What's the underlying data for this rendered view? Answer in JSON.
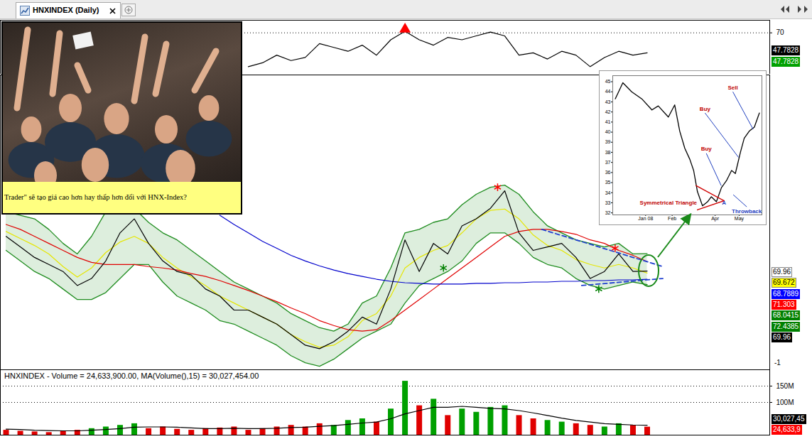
{
  "header": {
    "tab": "HNXINDEX (Daily)"
  },
  "photo": {
    "caption": "Trader\" sẽ tạo giá cao hơn hay thấp hơn đối với HNX-Index?"
  },
  "chart_data": [
    {
      "type": "line",
      "x": [
        0,
        1,
        2,
        3,
        4,
        5,
        6,
        7,
        8,
        9,
        10,
        11,
        12,
        13,
        14,
        15,
        16,
        17,
        18,
        19,
        20,
        21,
        22,
        23,
        24,
        25,
        26,
        27,
        28,
        29,
        30,
        31,
        32,
        33,
        34,
        35,
        36,
        37,
        38,
        39,
        40,
        41,
        42,
        43,
        44,
        45
      ],
      "series": [
        {
          "type": "line",
          "color": "#000000",
          "values": [
            null,
            null,
            null,
            null,
            null,
            null,
            null,
            null,
            null,
            null,
            null,
            null,
            null,
            null,
            null,
            null,
            null,
            32.4,
            36.7,
            45.2,
            39.2,
            42.6,
            58.0,
            53.8,
            49.5,
            56.3,
            45.2,
            62.3,
            71.7,
            62.3,
            56.3,
            64.9,
            62.3,
            66.6,
            70.9,
            66.6,
            45.2,
            47.8,
            40.9,
            49.5,
            45.2,
            32.4,
            42.6,
            49.5,
            45.2,
            47.7828
          ]
        }
      ],
      "xlim": [
        -0.4,
        53.6
      ],
      "ylim": [
        24,
        84
      ],
      "yticks": [
        70
      ],
      "grid": true,
      "tick_labels": "y",
      "markers": [
        {
          "x": 28,
          "y": 74,
          "color": "#ff0000",
          "marker": "triangle"
        }
      ],
      "right_labels": [
        {
          "label": "47.7828",
          "color": "#000000"
        },
        {
          "label": "47.7828",
          "color": "#00a000"
        }
      ]
    },
    {
      "type": "line",
      "x": [
        0,
        1,
        2,
        3,
        4,
        5,
        6,
        7,
        8,
        9,
        10,
        11,
        12,
        13,
        14,
        15,
        16,
        17,
        18,
        19,
        20,
        21,
        22,
        23,
        24,
        25,
        26,
        27,
        28,
        29,
        30,
        31,
        32,
        33,
        34,
        35,
        36,
        37,
        38,
        39,
        40,
        41,
        42,
        43,
        44,
        45
      ],
      "series": [
        {
          "type": "band",
          "color": "#1e8c1e",
          "upper": [
            78.4,
            77.9,
            77.4,
            75.9,
            73.9,
            72.4,
            74.9,
            78.4,
            79.4,
            78.9,
            76.9,
            75.4,
            74.4,
            72.9,
            71.4,
            69.9,
            68.4,
            67.4,
            66.4,
            65.4,
            63.9,
            62.9,
            61.9,
            61.4,
            62.4,
            65.4,
            66.4,
            70.4,
            75.4,
            75.9,
            76.9,
            77.4,
            79.4,
            80.9,
            81.9,
            82.2,
            80.9,
            78.4,
            76.4,
            75.4,
            74.4,
            73.9,
            73.4,
            73.9,
            72.4,
            72.4385
          ],
          "lower": [
            72.9,
            71.4,
            69.9,
            68.9,
            67.4,
            65.9,
            65.9,
            66.9,
            68.9,
            70.9,
            70.9,
            68.4,
            66.4,
            65.4,
            64.4,
            62.9,
            62.4,
            61.4,
            60.4,
            59.4,
            57.9,
            56.9,
            56.4,
            57.4,
            58.9,
            60.4,
            61.4,
            62.4,
            65.4,
            67.9,
            68.9,
            69.9,
            71.4,
            73.9,
            75.4,
            75.4,
            73.9,
            71.9,
            70.9,
            70.4,
            68.9,
            67.9,
            67.4,
            67.9,
            68.4,
            68.0415
          ]
        },
        {
          "type": "line",
          "color": "#e6e600",
          "values": [
            75.6,
            74.6,
            73.6,
            72.4,
            70.6,
            69.1,
            70.4,
            72.6,
            74.1,
            74.9,
            73.9,
            71.9,
            70.4,
            69.1,
            67.9,
            66.4,
            65.4,
            64.4,
            63.4,
            62.4,
            60.9,
            59.9,
            59.1,
            59.4,
            60.6,
            62.9,
            63.9,
            66.4,
            70.4,
            71.9,
            72.9,
            73.6,
            75.4,
            77.4,
            78.6,
            78.8,
            77.4,
            75.1,
            73.6,
            72.9,
            71.6,
            70.9,
            70.4,
            70.9,
            70.4,
            69.672
          ]
        },
        {
          "type": "line",
          "color": "#e00000",
          "values": [
            76.6,
            75.9,
            74.9,
            73.9,
            72.9,
            71.9,
            71.2,
            70.9,
            70.9,
            70.9,
            70.6,
            70.4,
            70.1,
            69.6,
            69.2,
            68.6,
            67.9,
            67.2,
            66.4,
            65.6,
            64.7,
            63.9,
            62.9,
            62.2,
            61.6,
            61.4,
            61.6,
            62.9,
            64.4,
            65.9,
            67.4,
            68.9,
            70.4,
            71.9,
            73.4,
            74.9,
            75.6,
            75.9,
            75.9,
            75.6,
            75.2,
            74.4,
            73.9,
            72.9,
            72.2,
            71.303
          ]
        },
        {
          "type": "line",
          "color": "#0000cc",
          "values": [
            null,
            null,
            null,
            null,
            null,
            null,
            null,
            null,
            null,
            null,
            null,
            null,
            null,
            null,
            null,
            77.9,
            76.6,
            75.4,
            74.2,
            73.2,
            72.2,
            71.4,
            70.7,
            70.1,
            69.6,
            69.2,
            68.8,
            68.5,
            68.3,
            68.2,
            68.1,
            68.1,
            68.1,
            68.2,
            68.2,
            68.3,
            68.3,
            68.4,
            68.4,
            68.5,
            68.5,
            68.6,
            68.6,
            68.7,
            68.7,
            68.7889
          ]
        },
        {
          "type": "line",
          "color": "#000000",
          "values": [
            74.9,
            73.4,
            71.9,
            70.9,
            69.9,
            67.9,
            68.9,
            71.4,
            75.4,
            77.4,
            73.9,
            71.4,
            69.9,
            69.4,
            67.4,
            66.4,
            64.4,
            64.4,
            63.4,
            62.4,
            60.9,
            59.4,
            58.9,
            59.9,
            61.4,
            63.4,
            62.4,
            67.4,
            74.4,
            69.9,
            73.9,
            72.4,
            76.4,
            77.4,
            78.9,
            81.4,
            75.4,
            72.9,
            73.4,
            73.9,
            71.9,
            68.9,
            69.9,
            72.4,
            69.9,
            69.96
          ]
        }
      ],
      "xlim": [
        -0.4,
        53.6
      ],
      "ylim": [
        55.9,
        97.9
      ],
      "tick_labels": false,
      "trendlines": [
        {
          "color": "#1f3fd0",
          "line_style": "dashed",
          "points": [
            [
              37.6,
              75.9
            ],
            [
              46.1,
              70.6
            ]
          ]
        },
        {
          "color": "#1f3fd0",
          "line_style": "dashed",
          "points": [
            [
              40.4,
              67.9
            ],
            [
              46.1,
              68.9
            ]
          ]
        }
      ],
      "markers": [
        {
          "x": 34.5,
          "y": 81.9,
          "color": "#ff0000",
          "marker": "asterisk"
        },
        {
          "x": 42.75,
          "y": 73.2,
          "color": "#ff0000",
          "marker": "asterisk"
        },
        {
          "x": 30.7,
          "y": 70.4,
          "color": "#008000",
          "marker": "asterisk"
        },
        {
          "x": 41.6,
          "y": 67.4,
          "color": "#008000",
          "marker": "asterisk"
        }
      ],
      "right_labels": [
        {
          "label": "69.96",
          "color": "#ffffff"
        },
        {
          "label": "69.672",
          "color": "#ffff00"
        },
        {
          "label": "68.7889",
          "color": "#0000ff"
        },
        {
          "label": "71.303",
          "color": "#ff0000"
        },
        {
          "label": "68.0415",
          "color": "#008000"
        },
        {
          "label": "72.4385",
          "color": "#008000"
        },
        {
          "label": "69.96",
          "color": "#000000"
        }
      ],
      "corner_label": "-1"
    },
    {
      "type": "bar",
      "title": "HNXINDEX - Volume = 24,633,900.00, MA(Volume(),15) = 30,027,454.00",
      "x": [
        0,
        1,
        2,
        3,
        4,
        5,
        6,
        7,
        8,
        9,
        10,
        11,
        12,
        13,
        14,
        15,
        16,
        17,
        18,
        19,
        20,
        21,
        22,
        23,
        24,
        25,
        26,
        27,
        28,
        29,
        30,
        31,
        32,
        33,
        34,
        35,
        36,
        37,
        38,
        39,
        40,
        41,
        42,
        43,
        44,
        45
      ],
      "values": [
        15000000,
        12000000,
        10000000,
        8000000,
        12000000,
        15000000,
        20000000,
        25000000,
        30000000,
        35000000,
        20000000,
        25000000,
        18000000,
        15000000,
        20000000,
        22000000,
        25000000,
        15000000,
        20000000,
        25000000,
        30000000,
        25000000,
        35000000,
        30000000,
        45000000,
        50000000,
        40000000,
        80000000,
        165000000,
        90000000,
        110000000,
        60000000,
        80000000,
        70000000,
        85000000,
        90000000,
        60000000,
        50000000,
        45000000,
        40000000,
        35000000,
        30000000,
        25000000,
        35000000,
        30000000,
        24633900
      ],
      "colors": [
        "#e00000",
        "#e00000",
        "#e00000",
        "#e00000",
        "#e00000",
        "#e00000",
        "#00a000",
        "#00a000",
        "#00a000",
        "#00a000",
        "#e00000",
        "#e00000",
        "#e00000",
        "#e00000",
        "#e00000",
        "#e00000",
        "#e00000",
        "#e00000",
        "#e00000",
        "#e00000",
        "#e00000",
        "#e00000",
        "#e00000",
        "#00a000",
        "#00a000",
        "#00a000",
        "#e00000",
        "#00a000",
        "#00a000",
        "#e00000",
        "#00a000",
        "#e00000",
        "#00a000",
        "#00a000",
        "#00a000",
        "#00a000",
        "#e00000",
        "#e00000",
        "#00a000",
        "#00a000",
        "#e00000",
        "#e00000",
        "#00a000",
        "#00a000",
        "#e00000",
        "#e00000"
      ],
      "series": [
        {
          "type": "line",
          "color": "#000000",
          "values": [
            18000000,
            17000000,
            15000000,
            14000000,
            13000000,
            13000000,
            15000000,
            17000000,
            20000000,
            24000000,
            25000000,
            25000000,
            24000000,
            22000000,
            20000000,
            20000000,
            21000000,
            20000000,
            20000000,
            21000000,
            23000000,
            24000000,
            27000000,
            29000000,
            33000000,
            37000000,
            40000000,
            50000000,
            65000000,
            75000000,
            85000000,
            85000000,
            88000000,
            85000000,
            82000000,
            80000000,
            75000000,
            68000000,
            60000000,
            52000000,
            45000000,
            40000000,
            35000000,
            33000000,
            31000000,
            30027454
          ]
        }
      ],
      "xlim": [
        -0.4,
        53.6
      ],
      "ylim": [
        0,
        200000000
      ],
      "yticks": [
        {
          "value": 150000000,
          "label": "150M"
        },
        {
          "value": 100000000,
          "label": "100M"
        }
      ],
      "grid": true,
      "tick_labels": "y",
      "right_labels": [
        {
          "label": "30,027,45",
          "color": "#000000"
        },
        {
          "label": "24,633,9",
          "color": "#ff0000"
        }
      ]
    },
    {
      "type": "line",
      "x": [
        -24,
        -18,
        -11,
        -3,
        5,
        10,
        18,
        23,
        27,
        31,
        35,
        38,
        41,
        45,
        49,
        52,
        56,
        60,
        64,
        68,
        71,
        75,
        78,
        82,
        86,
        90
      ],
      "values": [
        43.3,
        44.9,
        44.0,
        43.3,
        42.2,
        42.6,
        41.5,
        42.7,
        40.1,
        38.4,
        37.3,
        36.2,
        34.1,
        32.7,
        33.1,
        33.6,
        33.1,
        34.5,
        35.2,
        36.2,
        35.9,
        38.0,
        39.4,
        40.1,
        40.5,
        41.9
      ],
      "color": "#000000",
      "xlim": [
        -26,
        92
      ],
      "ylim": [
        31.8,
        45.6
      ],
      "xticks": [
        {
          "value": 0,
          "label": "Jan 08"
        },
        {
          "value": 21,
          "label": "Feb"
        },
        {
          "value": 55,
          "label": "Apr"
        },
        {
          "value": 74,
          "label": "May"
        }
      ],
      "yticks": [
        32,
        33,
        34,
        35,
        36,
        37,
        38,
        39,
        40,
        41,
        42,
        43,
        44,
        45
      ],
      "triangle": {
        "color": "#d00000",
        "lines": [
          [
            [
              40,
              34.7
            ],
            [
              62,
              33.2
            ]
          ],
          [
            [
              41,
              32.3
            ],
            [
              62,
              33.2
            ]
          ]
        ]
      },
      "annotations": [
        {
          "text": "Sell",
          "x": 69,
          "y": 44.0,
          "color": "#c00000",
          "target": [
            85,
            40.3
          ]
        },
        {
          "text": "Buy",
          "x": 47,
          "y": 41.9,
          "color": "#c00000",
          "target": [
            73.5,
            37.5
          ]
        },
        {
          "text": "Buy",
          "x": 48,
          "y": 37.9,
          "color": "#c00000",
          "target": [
            59.8,
            34.7
          ]
        },
        {
          "text": "Symmetrical Triangle",
          "x": 18,
          "y": 32.6,
          "color": "#c00000"
        },
        {
          "text": "A",
          "x": 62,
          "y": 32.6,
          "color": "#1f3fbf"
        },
        {
          "text": "Throwback",
          "x": 80,
          "y": 32.6,
          "color": "#1f3fbf",
          "target": [
            69.3,
            33.8
          ]
        }
      ]
    }
  ]
}
